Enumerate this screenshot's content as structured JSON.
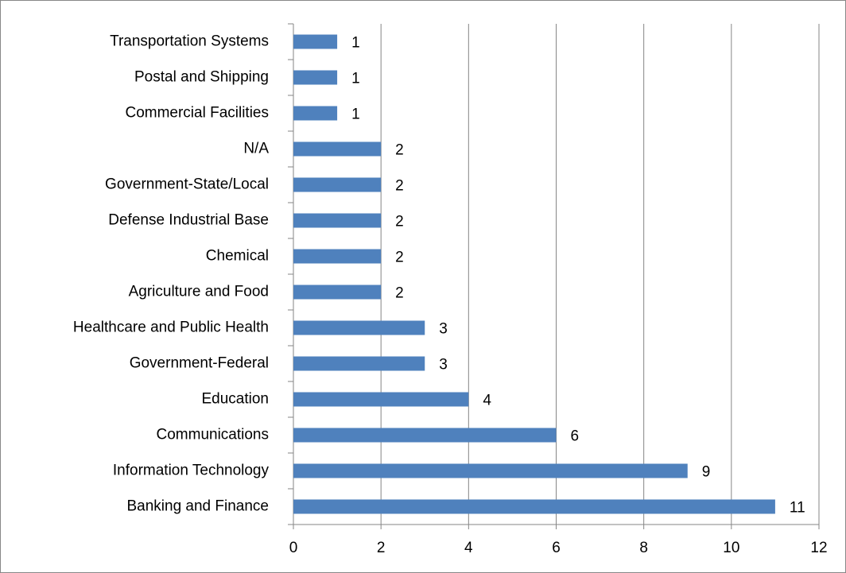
{
  "chart_data": {
    "type": "bar",
    "orientation": "horizontal",
    "categories": [
      "Transportation Systems",
      "Postal and Shipping",
      "Commercial Facilities",
      "N/A",
      "Government-State/Local",
      "Defense Industrial Base",
      "Chemical",
      "Agriculture and Food",
      "Healthcare and Public Health",
      "Government-Federal",
      "Education",
      "Communications",
      "Information Technology",
      "Banking and Finance"
    ],
    "values": [
      1,
      1,
      1,
      2,
      2,
      2,
      2,
      2,
      3,
      3,
      4,
      6,
      9,
      11
    ],
    "color": "#4f81bd",
    "xlim": [
      0,
      12
    ],
    "xticks": [
      0,
      2,
      4,
      6,
      8,
      10,
      12
    ],
    "grid": true
  }
}
